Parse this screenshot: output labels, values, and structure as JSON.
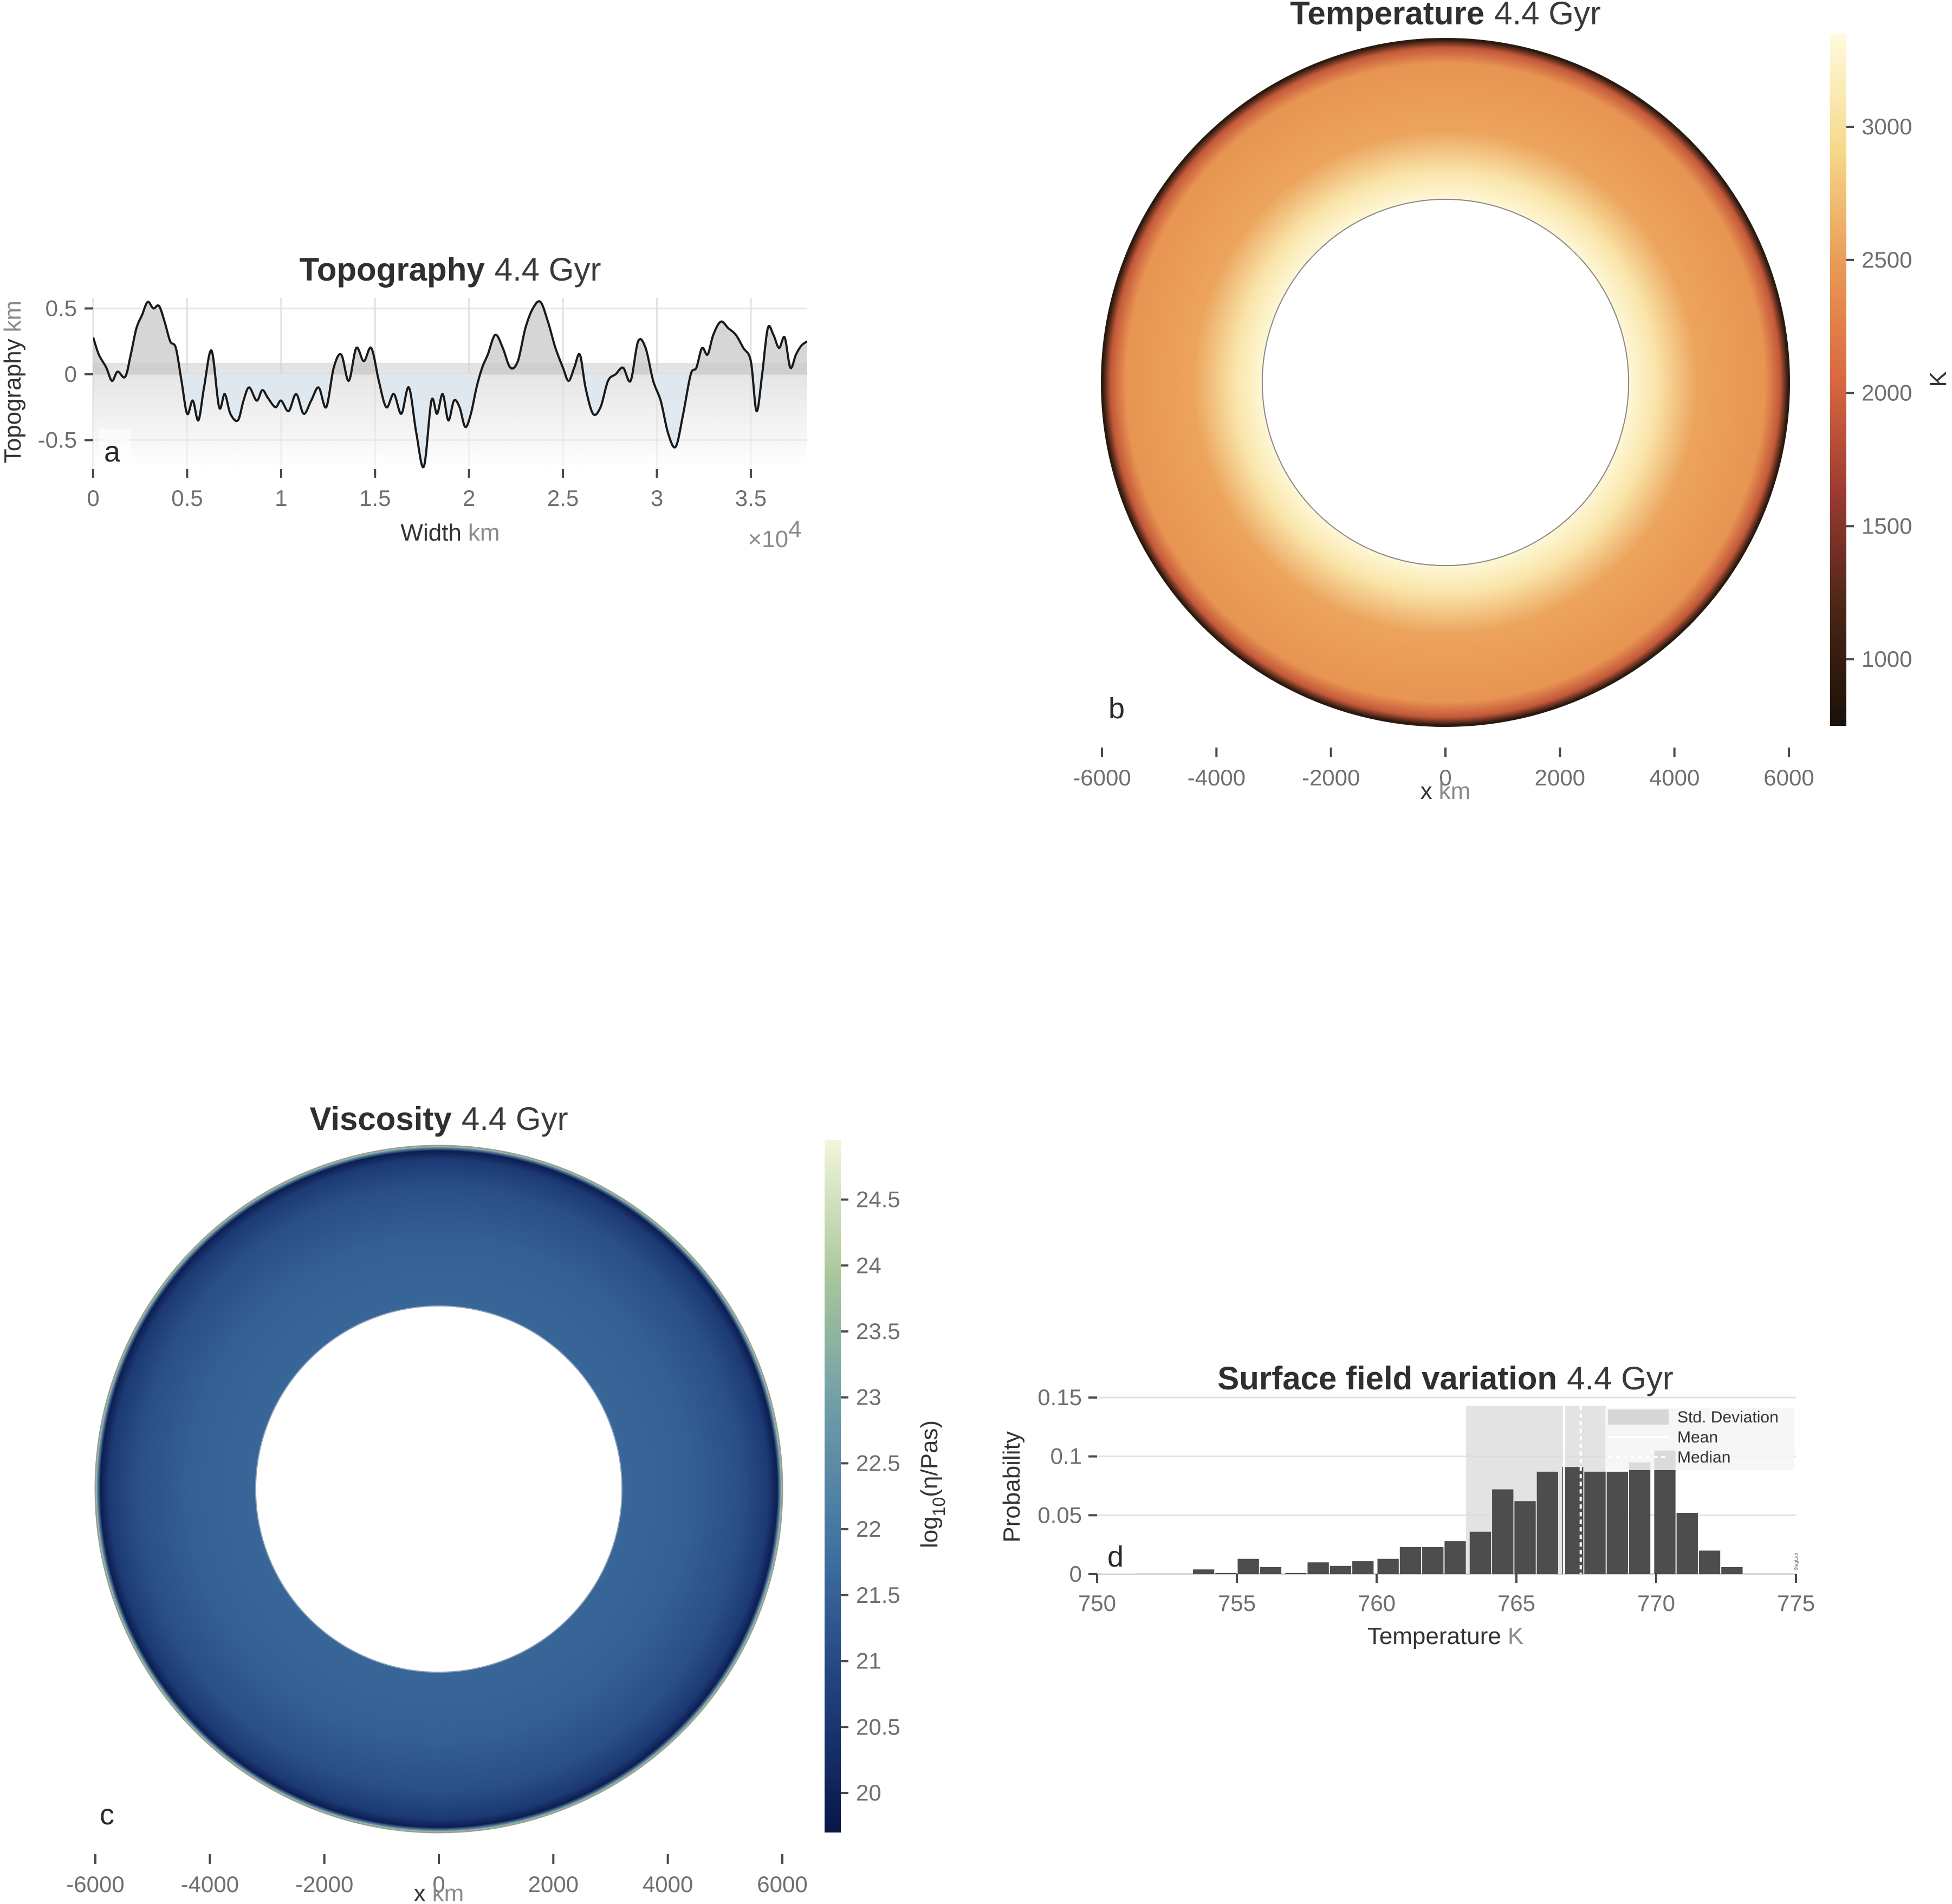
{
  "panels": {
    "a": {
      "label": "a",
      "title_bold": "Topography",
      "title_rest": "4.4 Gyr",
      "ylabel_main": "Topography",
      "ylabel_unit": "km",
      "xlabel_main": "Width",
      "xlabel_unit": "km",
      "xaxis_multiplier": "×10",
      "xaxis_exponent": "4"
    },
    "b": {
      "label": "b",
      "title_bold": "Temperature",
      "title_rest": "4.4 Gyr",
      "xlabel_main": "x",
      "xlabel_unit": "km",
      "colorbar_label": "K"
    },
    "c": {
      "label": "c",
      "title_bold": "Viscosity",
      "title_rest": "4.4 Gyr",
      "xlabel_main": "x",
      "xlabel_unit": "km",
      "colorbar_label_pre": "log",
      "colorbar_label_sub": "10",
      "colorbar_label_post": "(η/Pas)"
    },
    "d": {
      "label": "d",
      "title_bold": "Surface field variation",
      "title_rest": "4.4 Gyr",
      "ylabel": "Probability",
      "xlabel_main": "Temperature",
      "xlabel_unit": "K",
      "watermark": "StagLab",
      "legend": [
        "Std. Deviation",
        "Mean",
        "Median"
      ]
    }
  },
  "colors": {
    "topo_line": "#1a1a1a",
    "topo_fill_pos": "#c8c8c8",
    "topo_fill_neg": "#dde8ee",
    "hist_bar": "#4d4d4d",
    "hist_std_band": "#dcdcdc",
    "temp_cmap": [
      "#1a1208",
      "#4a2516",
      "#9a3a30",
      "#d9683f",
      "#ea9a55",
      "#f6d98a",
      "#fffbe0"
    ],
    "visc_cmap": [
      "#08164a",
      "#1f3f7a",
      "#3f6fa0",
      "#6a9aa8",
      "#a8c69a",
      "#f2f6d8"
    ]
  },
  "chart_data": [
    {
      "panel": "a",
      "type": "line",
      "title": "Topography 4.4 Gyr",
      "xlabel": "Width km",
      "ylabel": "Topography km",
      "xlim": [
        0,
        38000
      ],
      "ylim": [
        -0.72,
        0.58
      ],
      "xticks": [
        0,
        5000,
        10000,
        15000,
        20000,
        25000,
        30000,
        35000
      ],
      "xtick_labels": [
        "0",
        "0.5",
        "1",
        "1.5",
        "2",
        "2.5",
        "3",
        "3.5"
      ],
      "yticks": [
        -0.5,
        0,
        0.5
      ],
      "ytick_labels": [
        "-0.5",
        "0",
        "0.5"
      ],
      "grid": true,
      "x": [
        0,
        300,
        700,
        1000,
        1300,
        1700,
        2000,
        2300,
        2600,
        2900,
        3200,
        3500,
        3800,
        4100,
        4400,
        4700,
        5000,
        5300,
        5600,
        5900,
        6300,
        6700,
        7000,
        7300,
        7700,
        8000,
        8300,
        8700,
        9000,
        9300,
        9700,
        10000,
        10400,
        10800,
        11200,
        11600,
        12000,
        12400,
        12800,
        13200,
        13600,
        14000,
        14400,
        14800,
        15200,
        15600,
        16000,
        16400,
        16800,
        17200,
        17600,
        18000,
        18300,
        18600,
        18900,
        19200,
        19500,
        19800,
        20100,
        20400,
        20700,
        21000,
        21400,
        21800,
        22200,
        22600,
        23000,
        23400,
        23800,
        24200,
        24600,
        25000,
        25300,
        25600,
        25900,
        26200,
        26600,
        27000,
        27400,
        27800,
        28200,
        28600,
        29000,
        29400,
        29800,
        30200,
        30600,
        31000,
        31400,
        31800,
        32100,
        32400,
        32700,
        33000,
        33400,
        33800,
        34200,
        34600,
        35000,
        35300,
        35600,
        35900,
        36200,
        36500,
        36800,
        37100,
        37400,
        37700,
        38000
      ],
      "y": [
        0.28,
        0.15,
        0.05,
        -0.05,
        0.02,
        -0.02,
        0.15,
        0.35,
        0.45,
        0.55,
        0.5,
        0.52,
        0.4,
        0.25,
        0.2,
        -0.05,
        -0.3,
        -0.2,
        -0.35,
        -0.1,
        0.18,
        -0.25,
        -0.15,
        -0.3,
        -0.35,
        -0.2,
        -0.1,
        -0.2,
        -0.12,
        -0.18,
        -0.25,
        -0.2,
        -0.28,
        -0.15,
        -0.3,
        -0.2,
        -0.1,
        -0.25,
        0.05,
        0.15,
        -0.05,
        0.2,
        0.1,
        0.2,
        -0.05,
        -0.25,
        -0.15,
        -0.3,
        -0.1,
        -0.45,
        -0.7,
        -0.2,
        -0.3,
        -0.15,
        -0.35,
        -0.2,
        -0.25,
        -0.4,
        -0.3,
        -0.1,
        0.05,
        0.15,
        0.3,
        0.2,
        0.05,
        0.1,
        0.35,
        0.5,
        0.55,
        0.4,
        0.2,
        0.05,
        -0.05,
        0.05,
        0.15,
        -0.1,
        -0.3,
        -0.25,
        -0.05,
        0.0,
        0.05,
        -0.05,
        0.25,
        0.2,
        -0.05,
        -0.2,
        -0.45,
        -0.55,
        -0.3,
        0.0,
        0.05,
        0.2,
        0.15,
        0.3,
        0.4,
        0.35,
        0.3,
        0.2,
        0.1,
        -0.28,
        0.0,
        0.35,
        0.3,
        0.2,
        0.28,
        0.05,
        0.15,
        0.22,
        0.25
      ]
    },
    {
      "panel": "b",
      "type": "heatmap",
      "title": "Temperature 4.4 Gyr",
      "xlabel": "x km",
      "xlim": [
        -6000,
        6000
      ],
      "xticks": [
        -6000,
        -4000,
        -2000,
        0,
        2000,
        4000,
        6000
      ],
      "xtick_labels": [
        "-6000",
        "-4000",
        "-2000",
        "0",
        "2000",
        "4000",
        "6000"
      ],
      "inner_radius": 3200,
      "outer_radius": 6000,
      "colorbar": {
        "label": "K",
        "range": [
          750,
          3350
        ],
        "ticks": [
          1000,
          1500,
          2000,
          2500,
          3000
        ],
        "tick_labels": [
          "1000",
          "1500",
          "2000",
          "2500",
          "3000"
        ]
      },
      "field_profile": {
        "cmb": 3300,
        "interior": 2550,
        "surface": 800
      }
    },
    {
      "panel": "c",
      "type": "heatmap",
      "title": "Viscosity 4.4 Gyr",
      "xlabel": "x km",
      "xlim": [
        -6000,
        6000
      ],
      "xticks": [
        -6000,
        -4000,
        -2000,
        0,
        2000,
        4000,
        6000
      ],
      "xtick_labels": [
        "-6000",
        "-4000",
        "-2000",
        "0",
        "2000",
        "4000",
        "6000"
      ],
      "inner_radius": 3200,
      "outer_radius": 6000,
      "colorbar": {
        "label": "log10(η/Pas)",
        "range": [
          19.7,
          24.95
        ],
        "ticks": [
          20,
          20.5,
          21,
          21.5,
          22,
          22.5,
          23,
          23.5,
          24,
          24.5
        ],
        "tick_labels": [
          "20",
          "20.5",
          "21",
          "21.5",
          "22",
          "22.5",
          "23",
          "23.5",
          "24",
          "24.5"
        ]
      },
      "field_profile": {
        "cmb": 21.6,
        "interior": 21.3,
        "near_surface": 19.9,
        "surface": 24.9
      }
    },
    {
      "panel": "d",
      "type": "bar",
      "title": "Surface field variation 4.4 Gyr",
      "xlabel": "Temperature K",
      "ylabel": "Probability",
      "xlim": [
        750,
        775
      ],
      "ylim": [
        0,
        0.15
      ],
      "xticks": [
        750,
        755,
        760,
        765,
        770,
        775
      ],
      "xtick_labels": [
        "750",
        "755",
        "760",
        "765",
        "770",
        "775"
      ],
      "yticks": [
        0,
        0.05,
        0.1,
        0.15
      ],
      "ytick_labels": [
        "0",
        "0.05",
        "0.1",
        "0.15"
      ],
      "bin_width": 0.82,
      "bin_starts": [
        753.4,
        754.2,
        755.0,
        755.8,
        756.7,
        757.5,
        758.3,
        759.1,
        760.0,
        760.8,
        761.6,
        762.4,
        763.3,
        764.1,
        764.9,
        765.7,
        766.6,
        767.4,
        768.2,
        769.0,
        769.9,
        770.7,
        771.5,
        772.3
      ],
      "values": [
        0.004,
        0.001,
        0.013,
        0.006,
        0.001,
        0.01,
        0.007,
        0.011,
        0.013,
        0.023,
        0.023,
        0.028,
        0.036,
        0.072,
        0.062,
        0.087,
        0.091,
        0.087,
        0.087,
        0.095,
        0.105,
        0.052,
        0.02,
        0.006
      ],
      "std_band": [
        763.2,
        768.2
      ],
      "mean": 766.7,
      "median": 767.3,
      "legend": [
        "Std. Deviation",
        "Mean",
        "Median"
      ],
      "legend_position": "top-right"
    }
  ]
}
